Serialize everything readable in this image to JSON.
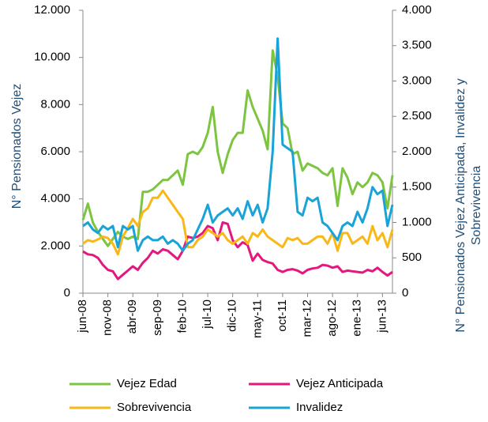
{
  "chart_data": {
    "type": "line",
    "categories": [
      "jun-08",
      null,
      null,
      null,
      null,
      "nov-08",
      null,
      null,
      null,
      null,
      "abr-09",
      null,
      null,
      null,
      null,
      "sep-09",
      null,
      null,
      null,
      null,
      "feb-10",
      null,
      null,
      null,
      null,
      "jul-10",
      null,
      null,
      null,
      null,
      "dic-10",
      null,
      null,
      null,
      null,
      "may-11",
      null,
      null,
      null,
      null,
      "oct-11",
      null,
      null,
      null,
      null,
      "mar-12",
      null,
      null,
      null,
      null,
      "ago-12",
      null,
      null,
      null,
      null,
      "ene-13",
      null,
      null,
      null,
      null,
      "jun-13",
      null,
      null
    ],
    "ylabel": "N° Pensionados Vejez",
    "y2label": [
      "N° Pensionados Vejez Anticipada, Invalidez y",
      "Sobrevivencia"
    ],
    "ylim": [
      0,
      12000
    ],
    "yticks": [
      0,
      {
        "value": 2000,
        "label": "2.000"
      },
      {
        "value": 4000,
        "label": "4.000"
      },
      {
        "value": 6000,
        "label": "6.000"
      },
      {
        "value": 8000,
        "label": "8.000"
      },
      {
        "value": 10000,
        "label": "10.000"
      },
      {
        "value": 12000,
        "label": "12.000"
      }
    ],
    "y2lim": [
      0,
      4000
    ],
    "y2ticks": [
      0,
      500,
      {
        "value": 1000,
        "label": "1.000"
      },
      {
        "value": 1500,
        "label": "1.500"
      },
      {
        "value": 2000,
        "label": "2.000"
      },
      {
        "value": 2500,
        "label": "2.500"
      },
      {
        "value": 3000,
        "label": "3.000"
      },
      {
        "value": 3500,
        "label": "3.500"
      },
      {
        "value": 4000,
        "label": "4.000"
      }
    ],
    "legend": "bottom",
    "series": [
      {
        "name": "Vejez Edad",
        "color": "#7dc540",
        "axis": "y",
        "values": [
          3100,
          3800,
          3000,
          2600,
          2300,
          2000,
          2300,
          2600,
          2400,
          2300,
          2400,
          2300,
          4300,
          4300,
          4400,
          4600,
          4800,
          4800,
          5000,
          5200,
          4600,
          5900,
          6000,
          5900,
          6200,
          6800,
          7900,
          6000,
          5100,
          5900,
          6500,
          6800,
          6800,
          8600,
          7900,
          7400,
          6900,
          6100,
          10300,
          9200,
          7200,
          7000,
          5900,
          6000,
          5200,
          5500,
          5400,
          5300,
          5100,
          5000,
          5300,
          3700,
          5300,
          4900,
          4200,
          4700,
          4500,
          4700,
          5100,
          5000,
          4700,
          3600,
          5000
        ]
      },
      {
        "name": "Vejez Anticipada",
        "color": "#e5177e",
        "axis": "y2",
        "values": [
          590,
          550,
          540,
          500,
          400,
          330,
          310,
          200,
          260,
          320,
          380,
          330,
          430,
          500,
          600,
          560,
          620,
          600,
          540,
          480,
          600,
          800,
          780,
          800,
          850,
          950,
          920,
          750,
          1000,
          980,
          750,
          650,
          720,
          680,
          460,
          560,
          470,
          440,
          420,
          330,
          300,
          330,
          340,
          320,
          280,
          330,
          350,
          360,
          400,
          390,
          360,
          380,
          300,
          320,
          310,
          300,
          290,
          330,
          310,
          360,
          300,
          250,
          300
        ]
      },
      {
        "name": "Sobrevivencia",
        "color": "#f9b817",
        "axis": "y2",
        "values": [
          700,
          750,
          730,
          760,
          800,
          780,
          700,
          550,
          800,
          920,
          1050,
          950,
          1150,
          1200,
          1350,
          1350,
          1450,
          1350,
          1250,
          1150,
          1050,
          650,
          650,
          750,
          800,
          900,
          850,
          800,
          850,
          750,
          700,
          750,
          800,
          700,
          850,
          800,
          900,
          800,
          750,
          700,
          650,
          780,
          750,
          780,
          700,
          700,
          750,
          800,
          800,
          700,
          850,
          600,
          850,
          850,
          700,
          750,
          800,
          700,
          950,
          750,
          850,
          650,
          900
        ]
      },
      {
        "name": "Invalidez",
        "color": "#1aa3d6",
        "axis": "y2",
        "values": [
          950,
          1000,
          900,
          850,
          950,
          900,
          950,
          650,
          950,
          900,
          950,
          600,
          750,
          800,
          750,
          750,
          800,
          700,
          750,
          700,
          600,
          700,
          750,
          900,
          1050,
          1250,
          1000,
          1100,
          1150,
          1200,
          1100,
          1200,
          1050,
          1300,
          1100,
          1250,
          1000,
          1200,
          2000,
          3600,
          2100,
          2050,
          2000,
          1150,
          1100,
          1350,
          1300,
          1350,
          1000,
          950,
          850,
          750,
          950,
          1000,
          950,
          1150,
          1000,
          1200,
          1500,
          1400,
          1450,
          950,
          1250
        ]
      }
    ]
  }
}
